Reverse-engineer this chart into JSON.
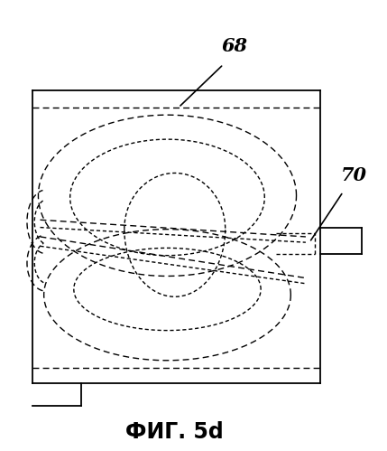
{
  "title": "ФИГ. 5d",
  "label_68": "68",
  "label_70": "70",
  "bg_color": "#ffffff",
  "line_color": "#000000",
  "fig_width": 4.29,
  "fig_height": 4.99,
  "dpi": 100
}
